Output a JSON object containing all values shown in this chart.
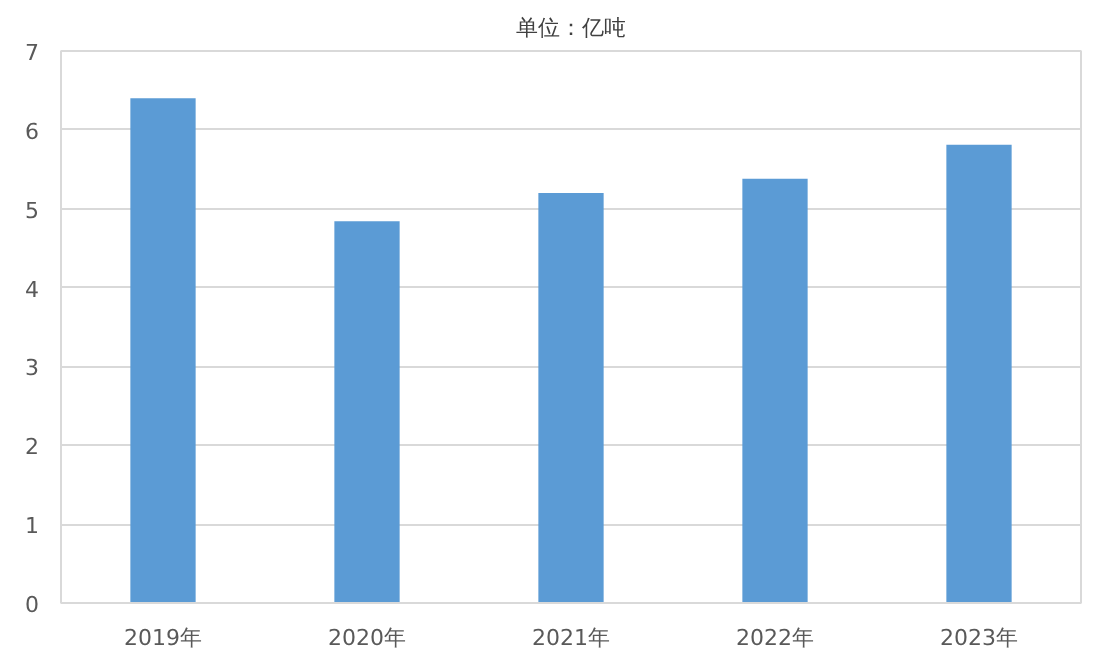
{
  "chart_data": {
    "type": "bar",
    "title": "单位：亿吨",
    "categories": [
      "2019年",
      "2020年",
      "2021年",
      "2022年",
      "2023年"
    ],
    "values": [
      6.4,
      4.84,
      5.2,
      5.38,
      5.81
    ],
    "color": "#5b9bd5",
    "ylim": [
      0,
      7
    ],
    "yticks": [
      0,
      1,
      2,
      3,
      4,
      5,
      6,
      7
    ],
    "grid": "y"
  }
}
